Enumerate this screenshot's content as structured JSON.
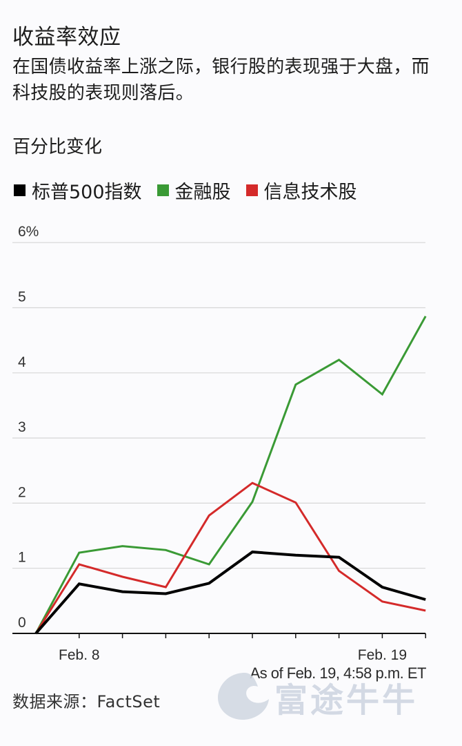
{
  "header": {
    "title": "收益率效应",
    "subtitle": "在国债收益率上涨之际，银行股的表现强于大盘，而科技股的表现则落后。",
    "unit_label": "百分比变化"
  },
  "legend": [
    {
      "label": "标普500指数",
      "color": "#000000"
    },
    {
      "label": "金融股",
      "color": "#3a9a35"
    },
    {
      "label": "信息技术股",
      "color": "#d42a2a"
    }
  ],
  "footer": {
    "source": "数据来源：FactSet",
    "as_of": "As of Feb. 19, 4:58 p.m. ET",
    "watermark": "富途牛牛"
  },
  "chart_data": {
    "type": "line",
    "title": "收益率效应",
    "subtitle": "在国债收益率上涨之际，银行股的表现强于大盘，而科技股的表现则落后。",
    "ylabel": "百分比变化",
    "xlabel": "",
    "x": [
      0,
      1,
      2,
      3,
      4,
      5,
      6,
      7,
      8,
      9
    ],
    "x_tick_labels": {
      "1": "Feb. 8",
      "8": "Feb. 19"
    },
    "y_ticks": [
      0,
      1,
      2,
      3,
      4,
      5,
      6
    ],
    "y_tick_labels": [
      "0",
      "1",
      "2",
      "3",
      "4",
      "5",
      "6%"
    ],
    "ylim": [
      0,
      6
    ],
    "grid": true,
    "legend_position": "top",
    "series": [
      {
        "name": "标普500指数",
        "color": "#000000",
        "values": [
          0,
          0.76,
          0.64,
          0.61,
          0.77,
          1.25,
          1.2,
          1.17,
          0.71,
          0.52
        ]
      },
      {
        "name": "金融股",
        "color": "#3a9a35",
        "values": [
          0,
          1.24,
          1.34,
          1.28,
          1.06,
          2.02,
          3.82,
          4.2,
          3.67,
          4.87
        ]
      },
      {
        "name": "信息技术股",
        "color": "#d42a2a",
        "values": [
          0,
          1.06,
          0.87,
          0.71,
          1.81,
          2.31,
          2.01,
          0.96,
          0.49,
          0.35
        ]
      }
    ],
    "annotation": "As of Feb. 19, 4:58 p.m. ET",
    "source": "FactSet"
  }
}
